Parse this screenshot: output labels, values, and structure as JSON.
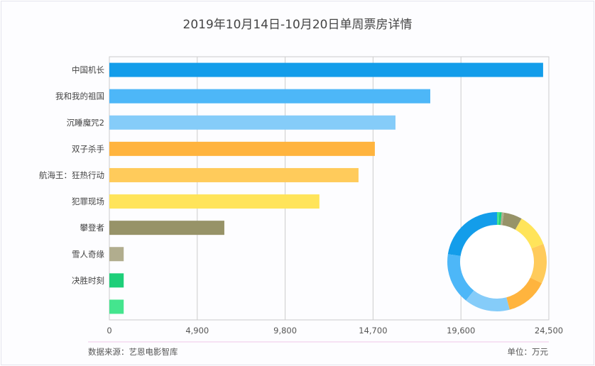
{
  "chart_data": {
    "type": "bar",
    "orientation": "horizontal",
    "title": "2019年10月14日-10月20日单周票房详情",
    "categories": [
      "中国机长",
      "我和我的祖国",
      "沉睡魔咒2",
      "双子杀手",
      "航海王：狂热行动",
      "犯罪现场",
      "攀登者",
      "雪人奇缘",
      "决胜时刻",
      ""
    ],
    "values": [
      24180,
      17890,
      15950,
      14800,
      13890,
      11710,
      6410,
      800,
      800,
      800
    ],
    "colors": [
      "#139DEA",
      "#4DB7F8",
      "#85CCF9",
      "#FFB43E",
      "#FFCB5B",
      "#FFE45A",
      "#979368",
      "#B1AD8E",
      "#1ECF79",
      "#44E58E"
    ],
    "xlim": [
      0,
      24500
    ],
    "xticks": [
      "0",
      "4,900",
      "9,800",
      "14,700",
      "19,600",
      "24,500"
    ],
    "grid": true,
    "inset_donut": true,
    "source": "数据来源：艺恩电影智库",
    "unit": "单位：万元"
  }
}
